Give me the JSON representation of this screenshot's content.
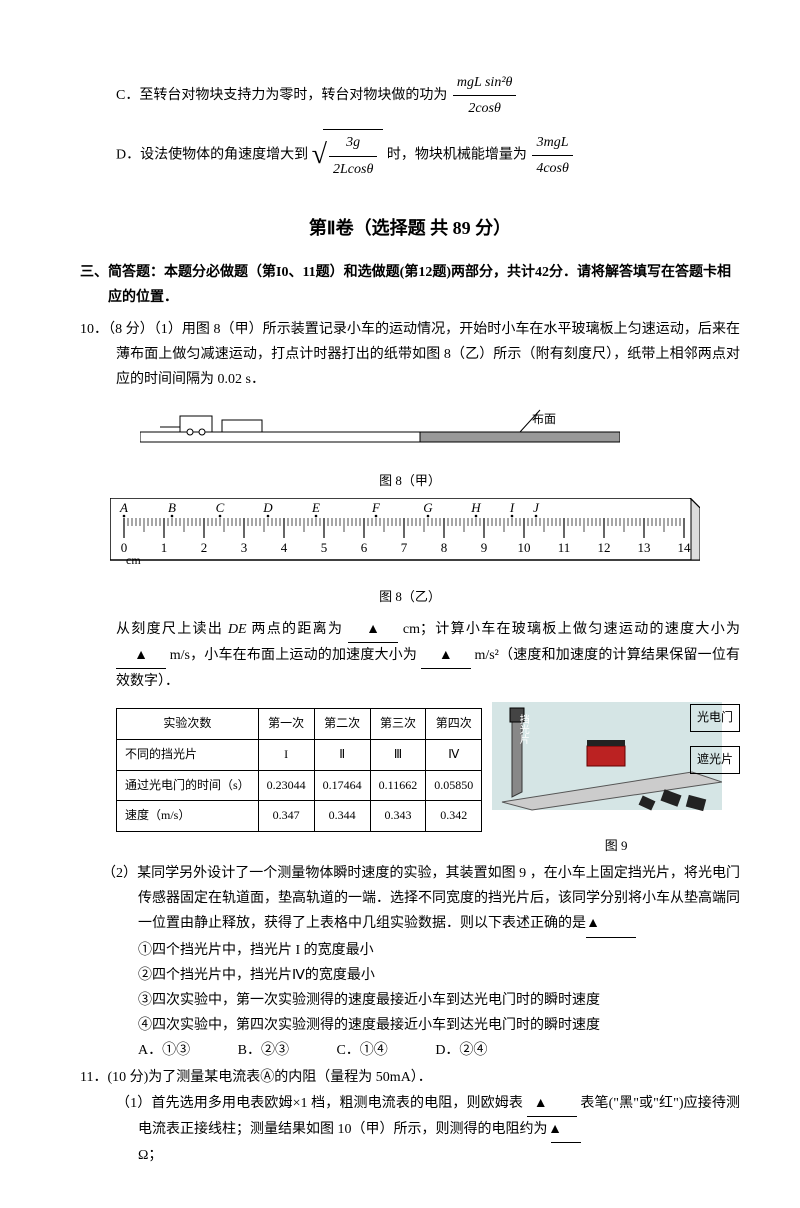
{
  "optC": {
    "label": "C．",
    "text": "至转台对物块支持力为零时，转台对物块做的功为",
    "num": "mgL sin²θ",
    "den": "2cosθ"
  },
  "optD": {
    "label": "D．",
    "text1": "设法使物体的角速度增大到",
    "sqrt_num": "3g",
    "sqrt_den": "2Lcosθ",
    "text2": "时，物块机械能增量为",
    "num": "3mgL",
    "den": "4cosθ"
  },
  "section2": "第Ⅱ卷（选择题 共 89 分）",
  "q3header": "三、简答题：本题分必做题（第I0、11题）和选做题(第12题)两部分，共计42分．请将解答填写在答题卡相应的位置．",
  "q10": {
    "line1": "10．（8 分）（1）用图 8（甲）所示装置记录小车的运动情况，开始时小车在水平玻璃板上匀速运动，后来在薄布面上做匀减速运动，打点计时器打出的纸带如图 8（乙）所示（附有刻度尺），纸带上相邻两点对应的时间间隔为 0.02 s．",
    "cloth": "布面",
    "cap1": "图 8（甲）",
    "cap2": "图 8（乙）",
    "ruler_labels": [
      "A",
      "B",
      "C",
      "D",
      "E",
      "F",
      "G",
      "H",
      "I",
      "J"
    ],
    "ruler_nums": [
      "0",
      "1",
      "2",
      "3",
      "4",
      "5",
      "6",
      "7",
      "8",
      "9",
      "10",
      "11",
      "12",
      "13",
      "14"
    ],
    "ruler_unit": "cm",
    "para2_a": "从刻度尺上读出",
    "para2_de": "DE",
    "para2_b": "两点的距离为",
    "para2_c": "cm；计算小车在玻璃板上做匀速运动的速度大小为",
    "para2_d": "m/s，小车在布面上运动的加速度大小为",
    "para2_e": "m/s²（速度和加速度的计算结果保留一位有效数字）．",
    "table": {
      "r0": [
        "实验次数",
        "第一次",
        "第二次",
        "第三次",
        "第四次"
      ],
      "r1": [
        "不同的挡光片",
        "I",
        "Ⅱ",
        "Ⅲ",
        "Ⅳ"
      ],
      "r2": [
        "通过光电门的时间（s）",
        "0.23044",
        "0.17464",
        "0.11662",
        "0.05850"
      ],
      "r3": [
        "速度（m/s）",
        "0.347",
        "0.344",
        "0.343",
        "0.342"
      ]
    },
    "legend1": "光电门",
    "legend2": "遮光片",
    "cap3": "图 9",
    "vert": "挡光片",
    "part2": "（2）某同学另外设计了一个测量物体瞬时速度的实验，其装置如图 9 ，在小车上固定挡光片，将光电门传感器固定在轨道面，垫高轨道的一端．选择不同宽度的挡光片后，该同学分别将小车从垫高端同一位置由静止释放，获得了上表格中几组实验数据．则以下表述正确的是",
    "o1": "①四个挡光片中，挡光片 I 的宽度最小",
    "o2": "②四个挡光片中，挡光片Ⅳ的宽度最小",
    "o3": "③四次实验中，第一次实验测得的速度最接近小车到达光电门时的瞬时速度",
    "o4": "④四次实验中，第四次实验测得的速度最接近小车到达光电门时的瞬时速度",
    "cA": "A．①③",
    "cB": "B．②③",
    "cC": "C．①④",
    "cD": "D．②④"
  },
  "q11": {
    "line1": "11．(10 分)为了测量某电流表Ⓐ的内阻（量程为 50mA）．",
    "line2a": "（1）首先选用多用电表欧姆×1 档，粗测电流表的电阻，则欧姆表",
    "line2b": "表笔(\"黑\"或\"红\")应接待测电流表正接线柱；测量结果如图 10（甲）所示，则测得的电阻约为",
    "line2c": "Ω；"
  },
  "blank_tri": "▲"
}
